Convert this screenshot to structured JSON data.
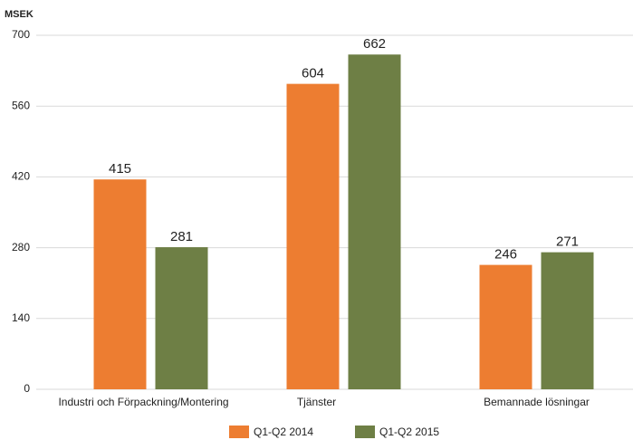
{
  "chart_data": {
    "type": "bar",
    "y_label": "MSEK",
    "categories": [
      "Industri och Förpackning/Montering",
      "Tjänster",
      "Bemannade lösningar"
    ],
    "series": [
      {
        "name": "Q1-Q2 2014",
        "color": "#ed7d31",
        "values": [
          415,
          604,
          246
        ]
      },
      {
        "name": "Q1-Q2 2015",
        "color": "#6e7f45",
        "values": [
          281,
          662,
          271
        ]
      }
    ],
    "ylim": [
      0,
      700
    ],
    "yticks": [
      0,
      140,
      280,
      420,
      560,
      700
    ],
    "grid": true
  }
}
